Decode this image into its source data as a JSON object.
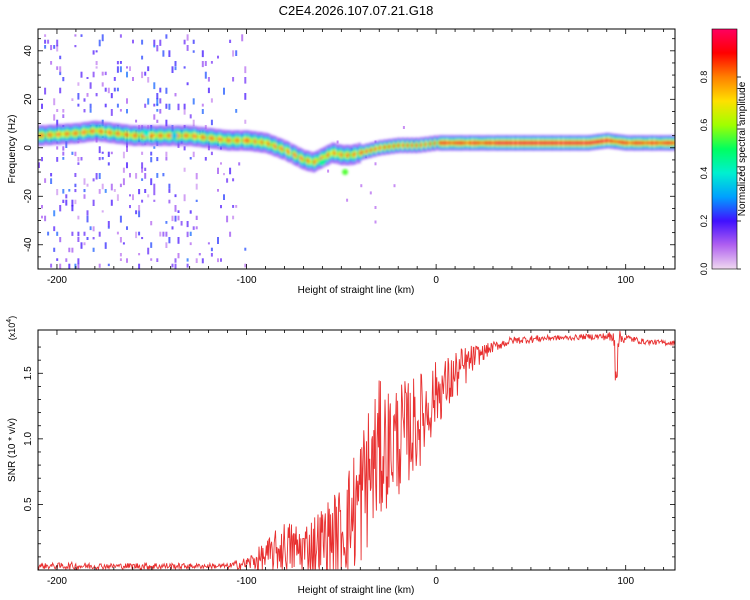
{
  "chart_data": [
    {
      "type": "heatmap",
      "title": "C2E4.2026.107.07.21.G18",
      "xlabel": "Height of straight line (km)",
      "ylabel": "Frequency (Hz)",
      "xlim": [
        -210,
        126
      ],
      "ylim": [
        -50,
        49
      ],
      "xticks": [
        -200,
        -100,
        0,
        100
      ],
      "yticks": [
        -40,
        -20,
        0,
        20,
        40
      ],
      "colorbar": {
        "label": "Normalized spectral amplitude",
        "range": [
          0,
          1
        ],
        "ticks": [
          0.0,
          0.2,
          0.4,
          0.6,
          0.8
        ],
        "tick_labels": [
          "0.0",
          "0.2",
          "0.4",
          "0.6",
          "0.8"
        ],
        "colormap": [
          "#f0d8f0",
          "#b060f0",
          "#4010ff",
          "#00a0ff",
          "#00f0d0",
          "#00ff60",
          "#a0ff00",
          "#ffe000",
          "#ff8000",
          "#ff0000",
          "#ff0060"
        ]
      },
      "ridge": {
        "x": [
          -210,
          -190,
          -180,
          -170,
          -160,
          -150,
          -140,
          -130,
          -120,
          -110,
          -100,
          -90,
          -80,
          -75,
          -70,
          -65,
          -60,
          -55,
          -50,
          -45,
          -40,
          -35,
          -30,
          -20,
          -10,
          0,
          10,
          20,
          40,
          60,
          80,
          90,
          100,
          126
        ],
        "freq": [
          5,
          6,
          7,
          6,
          5,
          5,
          5,
          5,
          4,
          3,
          3,
          2,
          -1,
          -3,
          -5,
          -6,
          -4,
          -2,
          -3,
          -3,
          -2,
          -1,
          0,
          1,
          1,
          2,
          2,
          2,
          2,
          2,
          2,
          3,
          2,
          2
        ]
      }
    },
    {
      "type": "line",
      "xlabel": "Height of straight line (km)",
      "ylabel": "SNR (10 * v/v)",
      "y_multiplier_label": "(x10",
      "y_multiplier_exp": "4",
      "y_multiplier_close": ")",
      "xlim": [
        -210,
        126
      ],
      "ylim": [
        0,
        1.83
      ],
      "xticks": [
        -200,
        -100,
        0,
        100
      ],
      "yticks": [
        0.5,
        1.0,
        1.5
      ],
      "ytick_labels": [
        "0.5",
        "1.0",
        "1.5"
      ],
      "color": "#e83030",
      "series": [
        {
          "name": "SNR",
          "x": [
            -210,
            -190,
            -170,
            -150,
            -130,
            -110,
            -100,
            -90,
            -80,
            -70,
            -60,
            -50,
            -45,
            -40,
            -35,
            -30,
            -25,
            -20,
            -15,
            -10,
            -5,
            0,
            5,
            10,
            15,
            20,
            25,
            30,
            40,
            50,
            60,
            70,
            80,
            90,
            95,
            100,
            110,
            126
          ],
          "y": [
            0.03,
            0.03,
            0.03,
            0.03,
            0.03,
            0.03,
            0.05,
            0.1,
            0.18,
            0.15,
            0.22,
            0.3,
            0.4,
            0.55,
            0.75,
            0.9,
            0.95,
            1.0,
            1.05,
            1.12,
            1.22,
            1.35,
            1.4,
            1.48,
            1.55,
            1.62,
            1.66,
            1.7,
            1.75,
            1.76,
            1.77,
            1.77,
            1.78,
            1.78,
            1.76,
            1.77,
            1.74,
            1.73
          ],
          "noise_amp": [
            0.02,
            0.03,
            0.02,
            0.03,
            0.02,
            0.02,
            0.05,
            0.12,
            0.2,
            0.22,
            0.28,
            0.35,
            0.45,
            0.55,
            0.55,
            0.55,
            0.45,
            0.45,
            0.4,
            0.38,
            0.32,
            0.25,
            0.22,
            0.2,
            0.16,
            0.1,
            0.06,
            0.04,
            0.03,
            0.03,
            0.02,
            0.02,
            0.02,
            0.03,
            0.08,
            0.03,
            0.02,
            0.02
          ]
        }
      ]
    }
  ]
}
